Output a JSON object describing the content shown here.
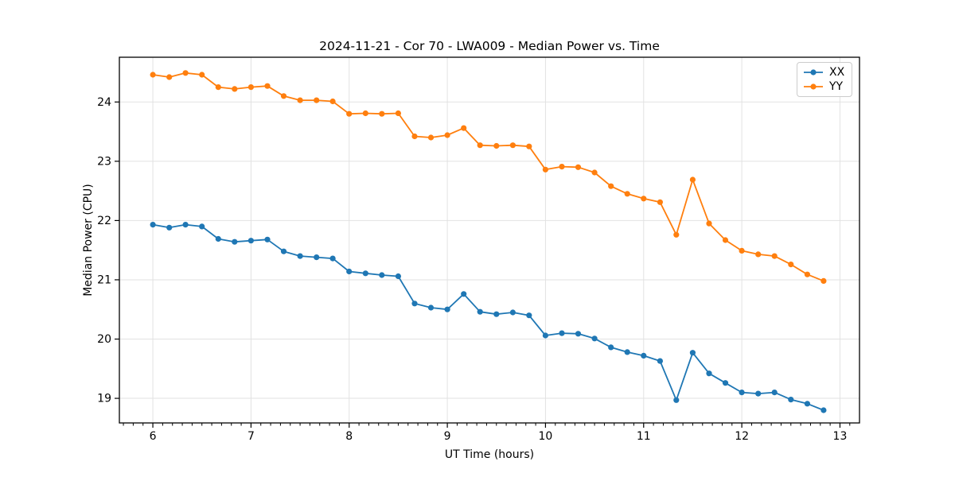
{
  "chart_data": {
    "type": "line",
    "title": "2024-11-21 - Cor 70 - LWA009 - Median Power vs. Time",
    "xlabel": "UT Time (hours)",
    "ylabel": "Median Power (CPU)",
    "xlim": [
      5.659,
      13.199
    ],
    "ylim": [
      18.585,
      24.755
    ],
    "x_ticks": [
      6,
      7,
      8,
      9,
      10,
      11,
      12,
      13
    ],
    "y_ticks": [
      19,
      20,
      21,
      22,
      23,
      24
    ],
    "x_minor_step": 0.1,
    "grid": true,
    "grid_color": "#e2e2e2",
    "legend_position": "upper right",
    "marker": "circle",
    "x": [
      6.0,
      6.167,
      6.333,
      6.5,
      6.667,
      6.833,
      7.0,
      7.167,
      7.333,
      7.5,
      7.667,
      7.833,
      8.0,
      8.167,
      8.333,
      8.5,
      8.667,
      8.833,
      9.0,
      9.167,
      9.333,
      9.5,
      9.667,
      9.833,
      10.0,
      10.167,
      10.333,
      10.5,
      10.667,
      10.833,
      11.0,
      11.167,
      11.333,
      11.5,
      11.667,
      11.833,
      12.0,
      12.167,
      12.333,
      12.5,
      12.667,
      12.833
    ],
    "series": [
      {
        "name": "XX",
        "color": "#1f77b4",
        "values": [
          21.93,
          21.88,
          21.93,
          21.9,
          21.69,
          21.64,
          21.66,
          21.68,
          21.48,
          21.4,
          21.38,
          21.36,
          21.14,
          21.11,
          21.08,
          21.06,
          20.6,
          20.53,
          20.5,
          20.76,
          20.46,
          20.42,
          20.45,
          20.4,
          20.06,
          20.1,
          20.09,
          20.01,
          19.86,
          19.78,
          19.72,
          19.63,
          18.97,
          19.77,
          19.42,
          19.26,
          19.1,
          19.08,
          19.1,
          18.98,
          18.91,
          18.8
        ]
      },
      {
        "name": "YY",
        "color": "#ff7f0e",
        "values": [
          24.46,
          24.42,
          24.49,
          24.46,
          24.25,
          24.22,
          24.25,
          24.27,
          24.1,
          24.03,
          24.03,
          24.01,
          23.8,
          23.81,
          23.8,
          23.81,
          23.42,
          23.4,
          23.44,
          23.56,
          23.27,
          23.26,
          23.27,
          23.25,
          22.86,
          22.91,
          22.9,
          22.81,
          22.58,
          22.45,
          22.37,
          22.31,
          21.76,
          22.69,
          21.95,
          21.67,
          21.49,
          21.43,
          21.4,
          21.26,
          21.09,
          20.98
        ]
      }
    ]
  }
}
